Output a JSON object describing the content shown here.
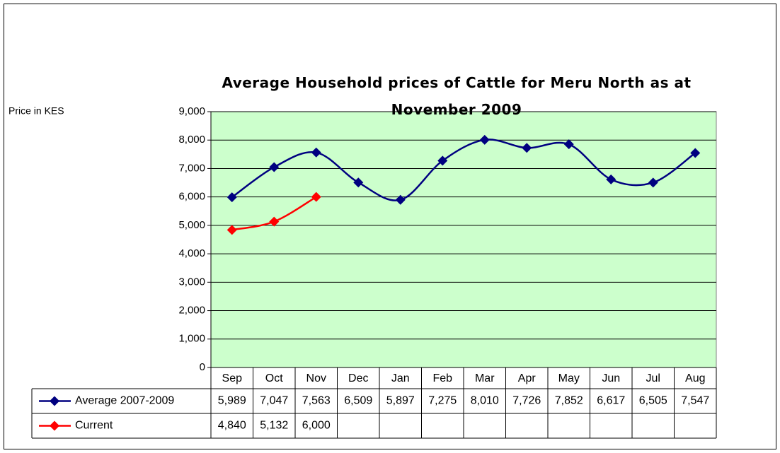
{
  "chart_data": {
    "type": "line",
    "title": "Average Household prices of Cattle for Meru North as at November 2009",
    "y_label": "Price in KES",
    "categories": [
      "Sep",
      "Oct",
      "Nov",
      "Dec",
      "Jan",
      "Feb",
      "Mar",
      "Apr",
      "May",
      "Jun",
      "Jul",
      "Aug"
    ],
    "series": [
      {
        "name": "Average 2007-2009",
        "color": "#000080",
        "values": [
          5989,
          7047,
          7563,
          6509,
          5897,
          7275,
          8010,
          7726,
          7852,
          6617,
          6505,
          7547
        ],
        "value_labels": [
          "5,989",
          "7,047",
          "7,563",
          "6,509",
          "5,897",
          "7,275",
          "8,010",
          "7,726",
          "7,852",
          "6,617",
          "6,505",
          "7,547"
        ]
      },
      {
        "name": "Current",
        "color": "#ff0000",
        "values": [
          4840,
          5132,
          6000,
          null,
          null,
          null,
          null,
          null,
          null,
          null,
          null,
          null
        ],
        "value_labels": [
          "4,840",
          "5,132",
          "6,000",
          null,
          null,
          null,
          null,
          null,
          null,
          null,
          null,
          null
        ]
      }
    ],
    "ylim": [
      0,
      9000
    ],
    "yticks": [
      0,
      {
        "value": 1000,
        "label": "1,000"
      },
      {
        "value": 2000,
        "label": "2,000"
      },
      {
        "value": 3000,
        "label": "3,000"
      },
      {
        "value": 4000,
        "label": "4,000"
      },
      {
        "value": 5000,
        "label": "5,000"
      },
      {
        "value": 6000,
        "label": "6,000"
      },
      {
        "value": 7000,
        "label": "7,000"
      },
      {
        "value": 8000,
        "label": "8,000"
      },
      {
        "value": 9000,
        "label": "9,000"
      }
    ],
    "grid": true,
    "smooth": true,
    "plot_background": "#ccffcc",
    "data_table": true
  }
}
